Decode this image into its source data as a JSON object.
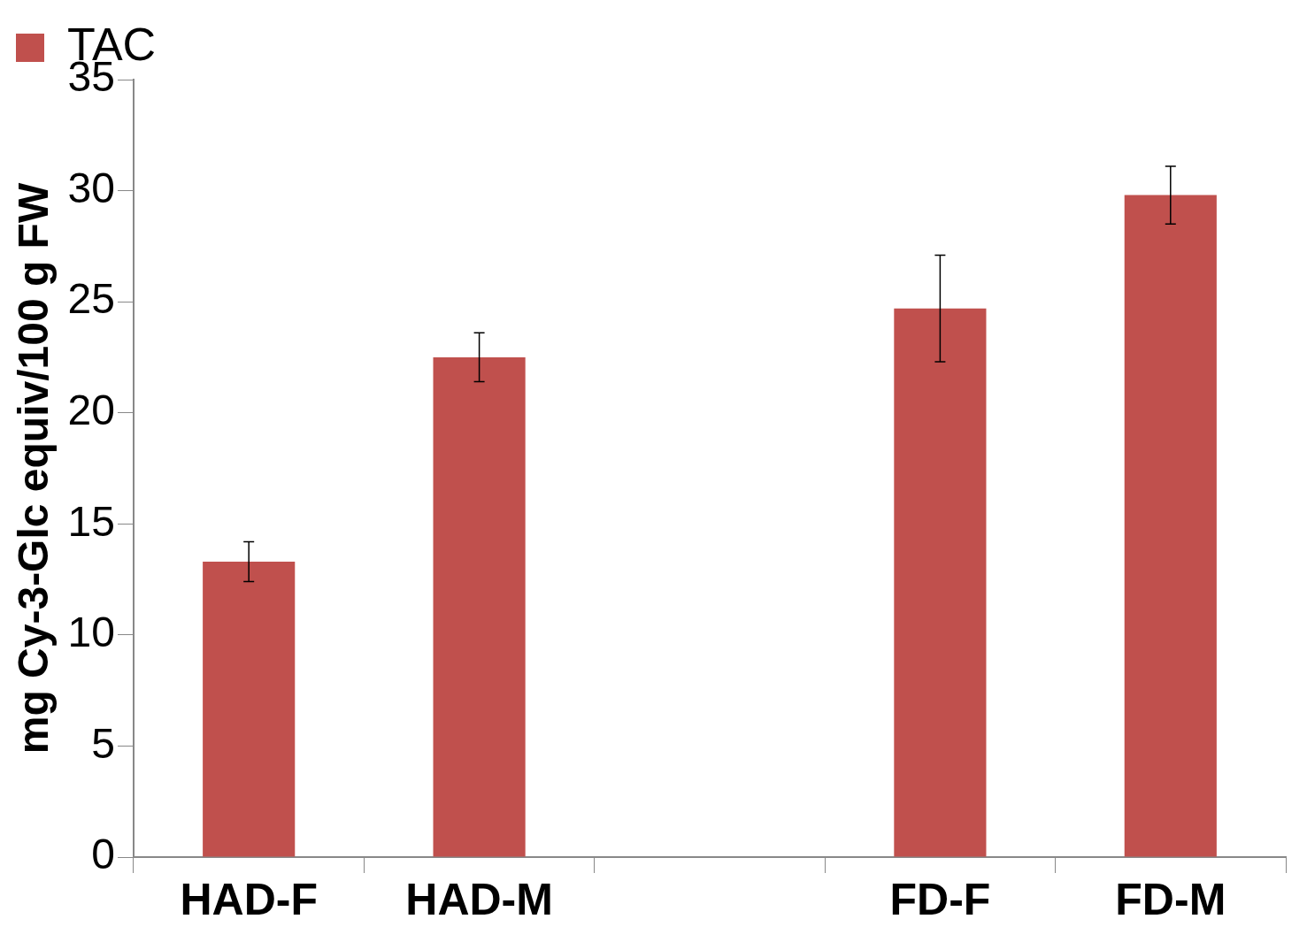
{
  "chart_data": {
    "type": "bar",
    "ylabel": "mg Cy-3-Glc equiv/100 g FW",
    "categories": [
      "HAD-F",
      "HAD-M",
      null,
      "FD-F",
      "FD-M"
    ],
    "series": [
      {
        "name": "TAC",
        "color": "#c0504d",
        "values": [
          13.3,
          22.5,
          null,
          24.7,
          29.8
        ],
        "errors": [
          0.9,
          1.1,
          null,
          2.4,
          1.3
        ]
      }
    ],
    "ylim": [
      0,
      35
    ],
    "yticks": [
      0,
      5,
      10,
      15,
      20,
      25,
      30,
      35
    ],
    "grid": false,
    "legend": "top left"
  }
}
